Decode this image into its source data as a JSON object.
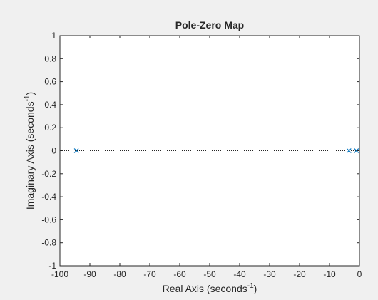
{
  "window": {
    "background": "#f0f0f0"
  },
  "chart_data": {
    "type": "scatter",
    "title": "Pole-Zero Map",
    "xlabel": {
      "text": "Real Axis (seconds",
      "sup": "-1",
      "tail": ")"
    },
    "ylabel": {
      "text": "Imaginary Axis (seconds",
      "sup": "-1",
      "tail": ")"
    },
    "xlim": [
      -100,
      0
    ],
    "ylim": [
      -1,
      1
    ],
    "xticks": [
      -100,
      -90,
      -80,
      -70,
      -60,
      -50,
      -40,
      -30,
      -20,
      -10,
      0
    ],
    "yticks": [
      -1,
      -0.8,
      -0.6,
      -0.4,
      -0.2,
      0,
      0.2,
      0.4,
      0.6,
      0.8,
      1
    ],
    "xtick_labels": [
      "-100",
      "-90",
      "-80",
      "-70",
      "-60",
      "-50",
      "-40",
      "-30",
      "-20",
      "-10",
      "0"
    ],
    "ytick_labels": [
      "-1",
      "-0.8",
      "-0.6",
      "-0.4",
      "-0.2",
      "0",
      "0.2",
      "0.4",
      "0.6",
      "0.8",
      "1"
    ],
    "grid": false,
    "reference_line": {
      "y": 0,
      "style": "dotted"
    },
    "series": [
      {
        "marker": "x",
        "color": "#0072bd",
        "points": [
          {
            "x": -94.5,
            "y": 0
          },
          {
            "x": -3.5,
            "y": 0
          },
          {
            "x": -1.0,
            "y": 0
          }
        ]
      }
    ]
  }
}
